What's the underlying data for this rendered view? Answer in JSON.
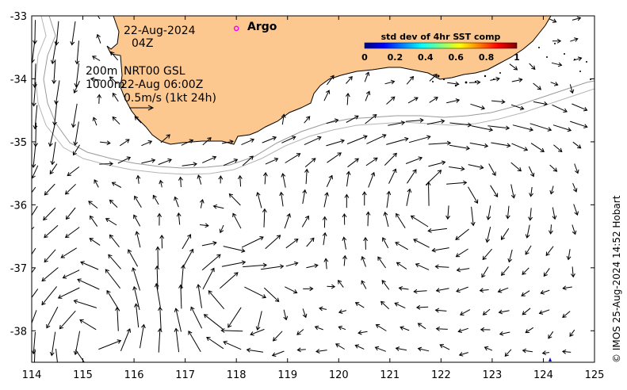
{
  "map": {
    "lon_range": [
      114,
      125
    ],
    "lat_range": [
      -38.5,
      -33
    ],
    "x_ticks": [
      114,
      115,
      116,
      117,
      118,
      119,
      120,
      121,
      122,
      123,
      124,
      125
    ],
    "y_ticks": [
      -33,
      -34,
      -35,
      -36,
      -37,
      -38
    ],
    "land_color": "#fcc88f",
    "ocean_color": "#ffffff"
  },
  "info": {
    "date": "22-Aug-2024",
    "time": "04Z",
    "depth_line1": "200m",
    "depth_line2": "1000m",
    "product": "NRT00 GSL",
    "product_time": "22-Aug 06:00Z",
    "scale_label": "0.5m/s (1kt 24h)"
  },
  "argo": {
    "label": "Argo",
    "marker_color": "#ff00ff",
    "lon": 118.0,
    "lat": -33.2
  },
  "colorbar": {
    "title": "std dev of 4hr SST comp",
    "ticks": [
      "0",
      "0.2",
      "0.4",
      "0.6",
      "0.8",
      "1"
    ]
  },
  "credit": "© IMOS 25-Aug-2024 14:52 Hobart"
}
